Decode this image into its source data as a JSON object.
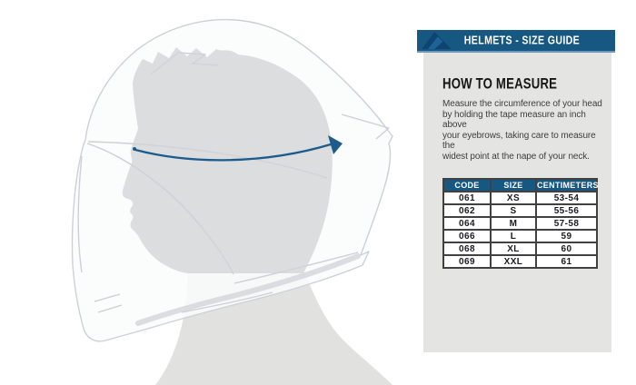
{
  "header": {
    "title": "HELMETS - SIZE GUIDE",
    "logo": "acerbis-brand-logo",
    "bar_color": "#175883"
  },
  "how_to_measure": {
    "title": "HOW TO MEASURE",
    "description": "Measure the circumference of your head\nby holding the tape measure an inch above\nyour eyebrows, taking care to measure the\nwidest point at the nape of your neck."
  },
  "table": {
    "columns": [
      "CODE",
      "SIZE",
      "CENTIMETERS"
    ],
    "rows": [
      [
        "061",
        "XS",
        "53-54"
      ],
      [
        "062",
        "S",
        "55-56"
      ],
      [
        "064",
        "M",
        "57-58"
      ],
      [
        "066",
        "L",
        "59"
      ],
      [
        "068",
        "XL",
        "60"
      ],
      [
        "069",
        "XXL",
        "61"
      ]
    ]
  },
  "illustration": {
    "type": "full-face-helmet-side-view-with-head-silhouette",
    "measurement_line_color": "#1d5b8c"
  },
  "colors": {
    "accent_blue": "#175883",
    "panel_background": "#e4e4e2",
    "table_border": "#414141",
    "silhouette_gray": "#d2d4d6"
  }
}
